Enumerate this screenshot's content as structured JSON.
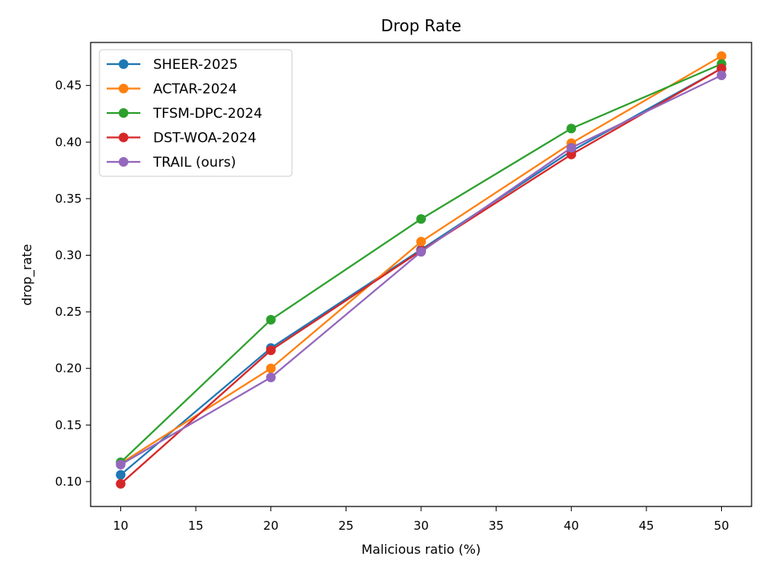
{
  "chart_data": {
    "type": "line",
    "title": "Drop Rate",
    "xlabel": "Malicious ratio (%)",
    "ylabel": "drop_rate",
    "x": [
      10,
      20,
      30,
      40,
      50
    ],
    "xlim": [
      8,
      52
    ],
    "ylim": [
      0.078,
      0.488
    ],
    "xticks": [
      10,
      15,
      20,
      25,
      30,
      35,
      40,
      45,
      50
    ],
    "yticks": [
      0.1,
      0.15,
      0.2,
      0.25,
      0.3,
      0.35,
      0.4,
      0.45
    ],
    "ytick_labels": [
      "0.10",
      "0.15",
      "0.20",
      "0.25",
      "0.30",
      "0.35",
      "0.40",
      "0.45"
    ],
    "grid": false,
    "legend_position": "top-left",
    "series": [
      {
        "name": "SHEER-2025",
        "color": "#1f77b4",
        "values": [
          0.106,
          0.218,
          0.305,
          0.392,
          0.465
        ]
      },
      {
        "name": "ACTAR-2024",
        "color": "#ff7f0e",
        "values": [
          0.116,
          0.2,
          0.312,
          0.399,
          0.476
        ]
      },
      {
        "name": "TFSM-DPC-2024",
        "color": "#2ca02c",
        "values": [
          0.117,
          0.243,
          0.332,
          0.412,
          0.469
        ]
      },
      {
        "name": "DST-WOA-2024",
        "color": "#d62728",
        "values": [
          0.098,
          0.216,
          0.304,
          0.389,
          0.465
        ]
      },
      {
        "name": "TRAIL (ours)",
        "color": "#9467bd",
        "values": [
          0.115,
          0.192,
          0.303,
          0.395,
          0.459
        ]
      }
    ]
  }
}
